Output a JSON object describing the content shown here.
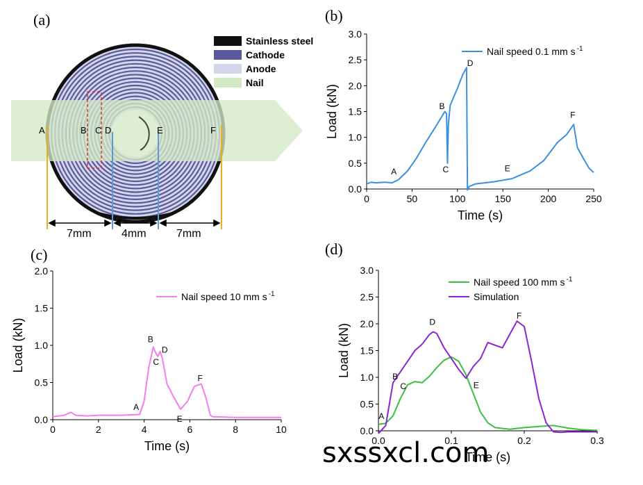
{
  "panels": {
    "a": {
      "label": "(a)",
      "legend": [
        {
          "name": "Stainless steel",
          "color": "#111111"
        },
        {
          "name": "Cathode",
          "color": "#5a5a9c"
        },
        {
          "name": "Anode",
          "color": "#d4d7ea"
        },
        {
          "name": "Nail",
          "color": "#d3e9c6"
        }
      ],
      "point_labels": [
        "A",
        "B",
        "C",
        "D",
        "E",
        "F"
      ],
      "dimensions": [
        "7mm",
        "4mm",
        "7mm"
      ],
      "colors": {
        "steel": "#111111",
        "cathode": "#5a5a9c",
        "anode": "#d4d7ea",
        "nail": "#d3e9c6",
        "yellow_line": "#e8b020",
        "blue_line": "#5b9bd5",
        "red_box": "#e03030"
      }
    },
    "b": {
      "label": "(b)"
    },
    "c": {
      "label": "(c)"
    },
    "d": {
      "label": "(d)"
    }
  },
  "watermark": "sxssxcl.com",
  "chart_data": [
    {
      "id": "b",
      "type": "line",
      "xlabel": "Time (s)",
      "ylabel": "Load (kN)",
      "xlim": [
        0,
        250
      ],
      "ylim": [
        0,
        3.0
      ],
      "xticks": [
        0,
        50,
        100,
        150,
        200,
        250
      ],
      "yticks": [
        0.0,
        0.5,
        1.0,
        1.5,
        2.0,
        2.5,
        3.0
      ],
      "xtick_labels": [
        "0",
        "50",
        "100",
        "150",
        "200",
        "250"
      ],
      "ytick_labels": [
        "0.0",
        "0.5",
        "1.0",
        "1.5",
        "2.0",
        "2.5",
        "3.0"
      ],
      "series": [
        {
          "name": "Nail speed 0.1 mm s",
          "superscript": "-1",
          "color": "#3a8fe0",
          "x": [
            0,
            5,
            10,
            20,
            28,
            35,
            45,
            55,
            65,
            75,
            82,
            86,
            88,
            89,
            90,
            92,
            100,
            106,
            110,
            111,
            113,
            120,
            140,
            160,
            180,
            195,
            210,
            220,
            228,
            232,
            240,
            245,
            250
          ],
          "y": [
            0.1,
            0.13,
            0.12,
            0.13,
            0.12,
            0.18,
            0.35,
            0.6,
            0.9,
            1.18,
            1.38,
            1.5,
            1.46,
            0.5,
            1.25,
            1.62,
            1.95,
            2.22,
            2.35,
            -0.02,
            0.05,
            0.1,
            0.14,
            0.2,
            0.35,
            0.55,
            0.9,
            1.05,
            1.25,
            0.8,
            0.55,
            0.4,
            0.32
          ]
        }
      ],
      "annotations": [
        {
          "text": "A",
          "x": 30,
          "y": 0.28
        },
        {
          "text": "B",
          "x": 83,
          "y": 1.55
        },
        {
          "text": "C",
          "x": 87,
          "y": 0.32
        },
        {
          "text": "D",
          "x": 114,
          "y": 2.38
        },
        {
          "text": "E",
          "x": 155,
          "y": 0.34
        },
        {
          "text": "F",
          "x": 227,
          "y": 1.38
        }
      ],
      "legend_loc": "top-right"
    },
    {
      "id": "c",
      "type": "line",
      "xlabel": "Time (s)",
      "ylabel": "Load (kN)",
      "xlim": [
        0,
        10
      ],
      "ylim": [
        0,
        2.0
      ],
      "xticks": [
        0,
        2,
        4,
        6,
        8,
        10
      ],
      "yticks": [
        0.0,
        0.5,
        1.0,
        1.5,
        2.0
      ],
      "xtick_labels": [
        "0",
        "2",
        "4",
        "6",
        "8",
        "10"
      ],
      "ytick_labels": [
        "0.0",
        "0.5",
        "1.0",
        "1.5",
        "2.0"
      ],
      "series": [
        {
          "name": "Nail speed 10 mm s",
          "superscript": "-1",
          "color": "#f47cf0",
          "x": [
            0,
            0.5,
            0.8,
            1.0,
            1.5,
            2.0,
            3.0,
            3.8,
            4.0,
            4.2,
            4.4,
            4.5,
            4.6,
            4.7,
            4.8,
            5.0,
            5.3,
            5.6,
            5.9,
            6.2,
            6.5,
            6.7,
            6.9,
            7.0,
            8.0,
            9.0,
            10.0
          ],
          "y": [
            0.04,
            0.06,
            0.1,
            0.06,
            0.05,
            0.06,
            0.06,
            0.07,
            0.25,
            0.7,
            0.98,
            0.9,
            0.85,
            0.92,
            0.82,
            0.48,
            0.3,
            0.14,
            0.25,
            0.45,
            0.48,
            0.3,
            0.06,
            0.04,
            0.03,
            0.03,
            0.03
          ]
        }
      ],
      "annotations": [
        {
          "text": "A",
          "x": 3.65,
          "y": 0.13
        },
        {
          "text": "B",
          "x": 4.28,
          "y": 1.04
        },
        {
          "text": "C",
          "x": 4.52,
          "y": 0.74
        },
        {
          "text": "D",
          "x": 4.9,
          "y": 0.9
        },
        {
          "text": "E",
          "x": 5.55,
          "y": -0.03
        },
        {
          "text": "F",
          "x": 6.45,
          "y": 0.52
        }
      ],
      "legend_loc": "top-right"
    },
    {
      "id": "d",
      "type": "line",
      "xlabel": "Time (s)",
      "ylabel": "Load (kN)",
      "xlim": [
        0.0,
        0.3
      ],
      "ylim": [
        0.0,
        3.0
      ],
      "xticks": [
        0.0,
        0.1,
        0.2,
        0.3
      ],
      "yticks": [
        0.0,
        0.5,
        1.0,
        1.5,
        2.0,
        2.5,
        3.0
      ],
      "xtick_labels": [
        "0.0",
        "0.1",
        "0.2",
        "0.3"
      ],
      "ytick_labels": [
        "0.0",
        "0.5",
        "1.0",
        "1.5",
        "2.0",
        "2.5",
        "3.0"
      ],
      "series": [
        {
          "name": "Nail speed 100 mm s",
          "superscript": "-1",
          "color": "#3cbf3c",
          "x": [
            0.0,
            0.01,
            0.02,
            0.03,
            0.04,
            0.05,
            0.06,
            0.07,
            0.08,
            0.09,
            0.1,
            0.11,
            0.12,
            0.13,
            0.14,
            0.15,
            0.16,
            0.18,
            0.2,
            0.22,
            0.24,
            0.26,
            0.28,
            0.3
          ],
          "y": [
            0.12,
            0.14,
            0.28,
            0.6,
            0.86,
            0.92,
            0.9,
            1.02,
            1.18,
            1.32,
            1.38,
            1.3,
            1.05,
            0.7,
            0.35,
            0.15,
            0.06,
            0.03,
            0.06,
            0.08,
            0.1,
            0.05,
            0.02,
            0.01
          ]
        },
        {
          "name": "Simulation",
          "superscript": "",
          "color": "#8a24d4",
          "x": [
            0.0,
            0.01,
            0.02,
            0.03,
            0.04,
            0.05,
            0.06,
            0.07,
            0.075,
            0.08,
            0.09,
            0.1,
            0.11,
            0.12,
            0.13,
            0.14,
            0.15,
            0.16,
            0.17,
            0.18,
            0.19,
            0.2,
            0.21,
            0.22,
            0.23,
            0.24,
            0.25,
            0.26,
            0.27,
            0.3
          ],
          "y": [
            -0.05,
            0.1,
            0.9,
            1.1,
            1.3,
            1.5,
            1.62,
            1.8,
            1.85,
            1.82,
            1.55,
            1.35,
            1.15,
            0.98,
            1.2,
            1.35,
            1.65,
            1.6,
            1.55,
            1.8,
            2.05,
            1.95,
            1.3,
            0.6,
            0.15,
            -0.02,
            -0.03,
            -0.02,
            -0.02,
            -0.02
          ]
        }
      ],
      "annotations": [
        {
          "text": "A",
          "x": 0.004,
          "y": 0.22
        },
        {
          "text": "B",
          "x": 0.023,
          "y": 0.96
        },
        {
          "text": "C",
          "x": 0.034,
          "y": 0.78
        },
        {
          "text": "D",
          "x": 0.074,
          "y": 1.98
        },
        {
          "text": "E",
          "x": 0.134,
          "y": 0.8
        },
        {
          "text": "F",
          "x": 0.193,
          "y": 2.1
        }
      ],
      "legend_loc": "top-right"
    }
  ]
}
